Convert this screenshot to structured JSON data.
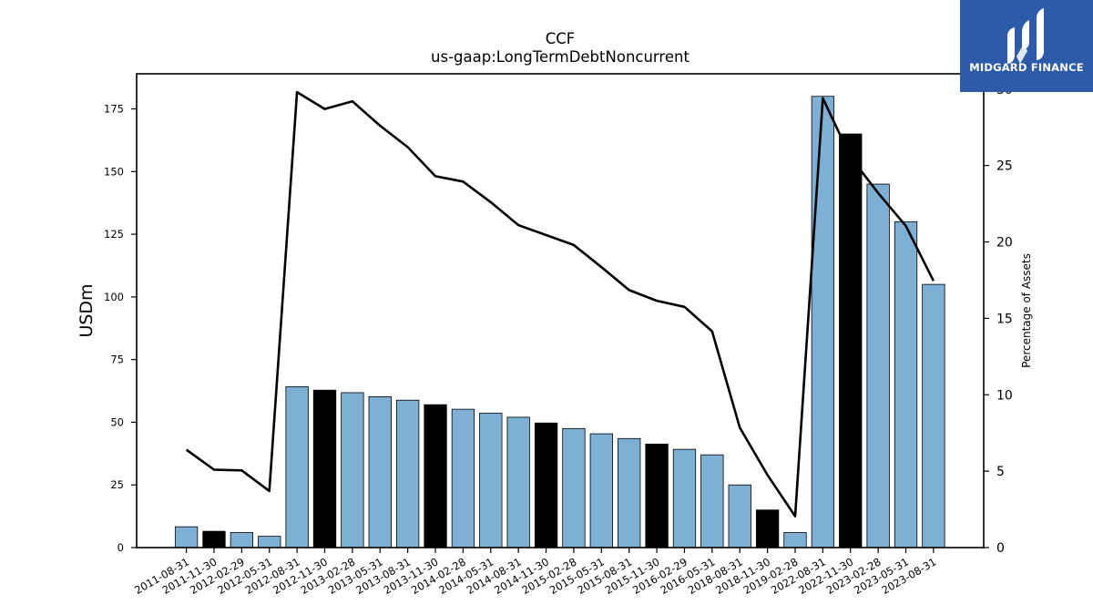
{
  "brand": {
    "name": "MIDGARD FINANCE",
    "color": "#2d5aa9"
  },
  "chart_data": {
    "type": "bar",
    "title": "CCF",
    "subtitle": "us-gaap:LongTermDebtNoncurrent",
    "ylabel": "USDm",
    "y2label": "Percentage of Assets",
    "ylim": [
      0,
      189
    ],
    "y2lim": [
      0,
      31
    ],
    "yticks": [
      0,
      25,
      50,
      75,
      100,
      125,
      150,
      175
    ],
    "y2ticks": [
      0,
      5,
      10,
      15,
      20,
      25,
      30
    ],
    "grid": false,
    "categories": [
      "2011-08-31",
      "2011-11-30",
      "2012-02-29",
      "2012-05-31",
      "2012-08-31",
      "2012-11-30",
      "2013-02-28",
      "2013-05-31",
      "2013-08-31",
      "2013-11-30",
      "2014-02-28",
      "2014-05-31",
      "2014-08-31",
      "2014-11-30",
      "2015-02-28",
      "2015-05-31",
      "2015-08-31",
      "2015-11-30",
      "2016-02-29",
      "2016-05-31",
      "2018-08-31",
      "2018-11-30",
      "2019-02-28",
      "2022-08-31",
      "2022-11-30",
      "2023-02-28",
      "2023-05-31",
      "2023-08-31"
    ],
    "series": [
      {
        "kind": "bar",
        "axis": "left",
        "values": [
          8.3,
          6.5,
          6.0,
          4.5,
          64.2,
          62.8,
          61.8,
          60.2,
          58.8,
          57.0,
          55.2,
          53.6,
          52.0,
          49.7,
          47.5,
          45.4,
          43.5,
          41.3,
          39.2,
          37.0,
          25.0,
          15.0,
          6.0,
          180.0,
          165.0,
          145.0,
          130.0,
          105.0
        ],
        "colors": [
          "#7eb0d5",
          "#000000",
          "#7eb0d5",
          "#7eb0d5",
          "#7eb0d5",
          "#000000",
          "#7eb0d5",
          "#7eb0d5",
          "#7eb0d5",
          "#000000",
          "#7eb0d5",
          "#7eb0d5",
          "#7eb0d5",
          "#000000",
          "#7eb0d5",
          "#7eb0d5",
          "#7eb0d5",
          "#000000",
          "#7eb0d5",
          "#7eb0d5",
          "#7eb0d5",
          "#000000",
          "#7eb0d5",
          "#7eb0d5",
          "#000000",
          "#7eb0d5",
          "#7eb0d5",
          "#7eb0d5"
        ]
      },
      {
        "kind": "line",
        "axis": "right",
        "color": "#000000",
        "values": [
          6.4,
          5.1,
          5.05,
          3.7,
          29.8,
          28.7,
          29.2,
          27.6,
          26.2,
          24.3,
          23.95,
          22.6,
          21.1,
          20.45,
          19.8,
          18.35,
          16.85,
          16.15,
          15.75,
          14.15,
          7.85,
          4.75,
          2.05,
          29.4,
          25.55,
          23.2,
          21.05,
          17.45
        ]
      }
    ]
  }
}
